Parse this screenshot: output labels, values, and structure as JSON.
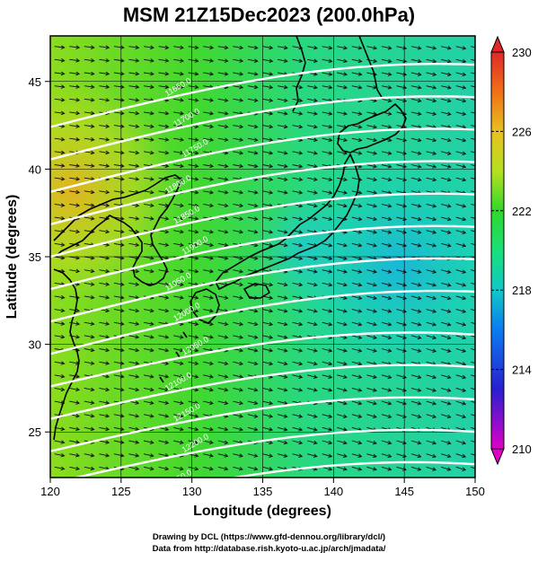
{
  "title": "MSM 21Z15Dec2023 (200.0hPa)",
  "x_axis": {
    "label": "Longitude (degrees)",
    "ticks": [
      120,
      125,
      130,
      135,
      140,
      145,
      150
    ],
    "range": [
      120,
      150
    ]
  },
  "y_axis": {
    "label": "Latitude  (degrees)",
    "ticks": [
      25,
      30,
      35,
      40,
      45
    ],
    "range": [
      22.4,
      47.6
    ]
  },
  "colorbar": {
    "labels": [
      230,
      226,
      222,
      218,
      214,
      210
    ],
    "range": [
      210,
      230
    ],
    "colors": {
      "210": "#e000c8",
      "213": "#2a1fd0",
      "216": "#0a7cf0",
      "218": "#10c8c8",
      "220": "#18e078",
      "222": "#30d82a",
      "224": "#b4e020",
      "226": "#e8c020",
      "228": "#f07018",
      "230": "#e02828"
    }
  },
  "contours": {
    "values": [
      "11650.0",
      "11700.0",
      "11750.0",
      "11800.0",
      "11850.0",
      "11900.0",
      "11950.0",
      "12000.0",
      "12050.0",
      "12100.0",
      "12150.0",
      "12200.0",
      "12250.0"
    ],
    "color": "#ffffff"
  },
  "credits": {
    "line1": "Drawing by DCL (https://www.gfd-dennou.org/library/dcl/)",
    "line2": "Data from http://database.rish.kyoto-u.ac.jp/arch/jmadata/"
  }
}
